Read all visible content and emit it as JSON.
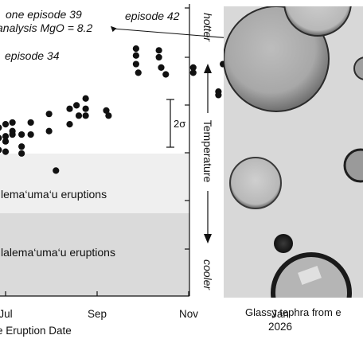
{
  "chart_data": {
    "type": "scatter",
    "xlabel": "e Eruption Date",
    "ylabel": "Temperature",
    "y_direction_labels": {
      "top": "hotter",
      "bottom": "cooler"
    },
    "x_ticks": [
      "Jul",
      "Sep",
      "Nov",
      "Jan\n2026"
    ],
    "tick_months": [
      0,
      2,
      4,
      6
    ],
    "bands": [
      {
        "label": "lema‘uma‘u eruptions",
        "color": "#efefef"
      },
      {
        "label": "lalema‘uma‘u eruptions",
        "color": "#dadada"
      }
    ],
    "error_bar_label": "2σ",
    "annotations": {
      "ep39": "one episode 39",
      "mgo": "analysis MgO = 8.2",
      "ep42": "episode 42",
      "ep34": "episode 34"
    },
    "points": [
      [
        -0.6,
        10.6
      ],
      [
        -0.5,
        10.2
      ],
      [
        -0.3,
        9.4
      ],
      [
        -0.3,
        9.0
      ],
      [
        -0.3,
        8.6
      ],
      [
        -0.15,
        9.8
      ],
      [
        -0.15,
        9.2
      ],
      [
        -0.15,
        8.5
      ],
      [
        0.0,
        10.0
      ],
      [
        0.0,
        9.3
      ],
      [
        0.0,
        9.0
      ],
      [
        0.0,
        8.4
      ],
      [
        0.15,
        10.1
      ],
      [
        0.15,
        9.6
      ],
      [
        0.15,
        9.4
      ],
      [
        0.35,
        9.4
      ],
      [
        0.35,
        8.7
      ],
      [
        0.35,
        8.3
      ],
      [
        0.55,
        10.1
      ],
      [
        0.55,
        9.4
      ],
      [
        0.95,
        10.6
      ],
      [
        0.95,
        9.6
      ],
      [
        1.1,
        7.3
      ],
      [
        1.4,
        10.9
      ],
      [
        1.4,
        10.0
      ],
      [
        1.55,
        11.1
      ],
      [
        1.6,
        10.5
      ],
      [
        1.75,
        11.5
      ],
      [
        1.75,
        10.9
      ],
      [
        1.75,
        10.5
      ],
      [
        2.2,
        10.8
      ],
      [
        2.25,
        10.5
      ],
      [
        2.85,
        14.4
      ],
      [
        2.85,
        14.0
      ],
      [
        2.85,
        13.5
      ],
      [
        2.9,
        13.0
      ],
      [
        3.35,
        14.3
      ],
      [
        3.35,
        13.9
      ],
      [
        3.4,
        13.3
      ],
      [
        3.5,
        12.9
      ],
      [
        4.1,
        13.3
      ],
      [
        4.1,
        13.0
      ],
      [
        4.65,
        11.9
      ],
      [
        4.65,
        11.7
      ],
      [
        4.75,
        13.5
      ],
      [
        5.0,
        13.6
      ],
      [
        5.0,
        13.3
      ],
      [
        5.0,
        12.6
      ],
      [
        5.1,
        12.3
      ],
      [
        5.5,
        12.6
      ],
      [
        5.5,
        12.3
      ],
      [
        5.55,
        12.0
      ],
      [
        5.95,
        13.3
      ],
      [
        5.95,
        12.9
      ],
      [
        6.3,
        14.4
      ],
      [
        6.3,
        14.0
      ],
      [
        6.45,
        13.0
      ],
      [
        6.5,
        12.9
      ],
      [
        6.5,
        12.5
      ],
      [
        6.9,
        13.9
      ],
      [
        6.95,
        13.4
      ],
      [
        6.95,
        13.1
      ],
      [
        7.35,
        13.3
      ],
      [
        7.45,
        13.9
      ],
      [
        7.5,
        13.0
      ],
      [
        8.15,
        13.4
      ],
      [
        8.15,
        13.2
      ],
      [
        6.0,
        14.7
      ],
      [
        8.6,
        16.8
      ]
    ]
  },
  "photo": {
    "caption": "Glassy tephra from e",
    "background_color": "#d9d9d9",
    "outline_color": "#2b2b2b"
  }
}
